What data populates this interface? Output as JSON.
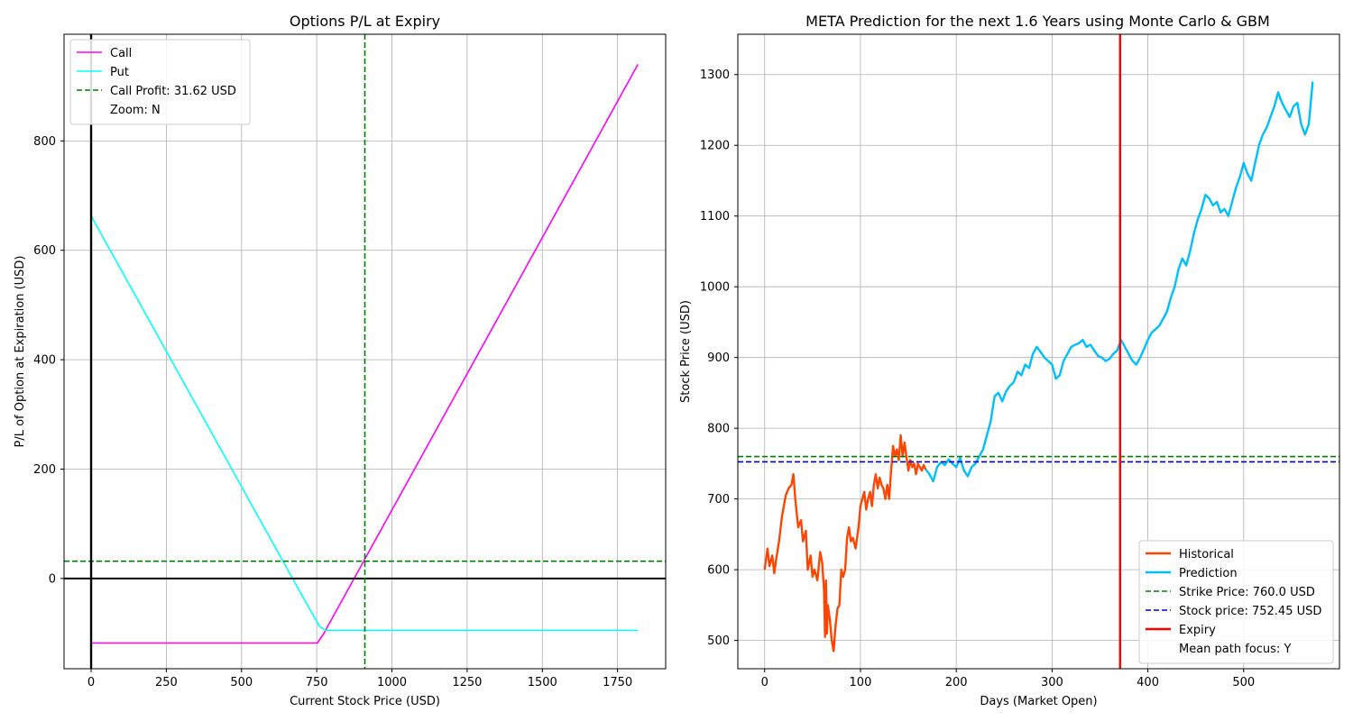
{
  "chart_data": [
    {
      "id": "left",
      "type": "line",
      "title": "Options P/L at Expiry",
      "xlabel": "Current Stock Price (USD)",
      "ylabel": "P/L of Option at Expiration (USD)",
      "xlim": [
        -90,
        1910
      ],
      "ylim": [
        -165,
        995
      ],
      "xticks": [
        0,
        250,
        500,
        750,
        1000,
        1250,
        1500,
        1750
      ],
      "yticks": [
        0,
        200,
        400,
        600,
        800
      ],
      "grid": true,
      "legend_position": "upper-left",
      "series": [
        {
          "name": "Call",
          "color": "#ff00ff",
          "x": [
            0,
            752,
            770,
            1818
          ],
          "y": [
            -118,
            -118,
            -104,
            940
          ]
        },
        {
          "name": "Put",
          "color": "#00ffff",
          "x": [
            0,
            700,
            760,
            780,
            1818
          ],
          "y": [
            663,
            -30,
            -88,
            -95,
            -95
          ]
        }
      ],
      "hlines": [
        {
          "name": "Call Profit: 31.62 USD",
          "y": 31.62,
          "color": "#008000",
          "style": "dashed",
          "legend": true
        },
        {
          "y": 0,
          "color": "#000000",
          "style": "solid",
          "legend": false
        }
      ],
      "vlines": [
        {
          "x": 910,
          "color": "#008000",
          "style": "dashed"
        },
        {
          "x": 0,
          "color": "#000000",
          "style": "solid"
        }
      ],
      "legend_extra": [
        "Zoom: N"
      ]
    },
    {
      "id": "right",
      "type": "line",
      "title": "META Prediction for the next 1.6 Years using Monte Carlo & GBM",
      "xlabel": "Days (Market Open)",
      "ylabel": "Stock Price (USD)",
      "xlim": [
        -28,
        600
      ],
      "ylim": [
        460,
        1357
      ],
      "xticks": [
        0,
        100,
        200,
        300,
        400,
        500
      ],
      "yticks": [
        500,
        600,
        700,
        800,
        900,
        1000,
        1100,
        1200,
        1300
      ],
      "grid": true,
      "legend_position": "lower-right",
      "series": [
        {
          "name": "Historical",
          "color": "#ff4500",
          "x": [
            0,
            3,
            5,
            8,
            10,
            12,
            15,
            18,
            20,
            22,
            25,
            28,
            30,
            32,
            35,
            38,
            40,
            43,
            45,
            48,
            50,
            52,
            55,
            58,
            60,
            62,
            63,
            64,
            65,
            66,
            68,
            70,
            72,
            74,
            76,
            78,
            80,
            82,
            84,
            86,
            88,
            90,
            92,
            95,
            98,
            100,
            102,
            104,
            106,
            108,
            110,
            112,
            114,
            116,
            118,
            120,
            122,
            124,
            126,
            128,
            130,
            132,
            134,
            136,
            138,
            140,
            142,
            144,
            146,
            148,
            150,
            152,
            154,
            156,
            158,
            160,
            162,
            164,
            166,
            168
          ],
          "y": [
            600,
            630,
            605,
            620,
            595,
            615,
            640,
            675,
            690,
            705,
            715,
            720,
            735,
            700,
            660,
            670,
            640,
            655,
            600,
            620,
            590,
            600,
            585,
            625,
            610,
            570,
            505,
            585,
            510,
            550,
            530,
            500,
            485,
            520,
            545,
            550,
            600,
            590,
            600,
            645,
            660,
            640,
            645,
            630,
            660,
            690,
            700,
            710,
            685,
            700,
            710,
            690,
            720,
            735,
            715,
            730,
            720,
            715,
            700,
            720,
            700,
            740,
            775,
            760,
            770,
            755,
            790,
            760,
            780,
            760,
            740,
            755,
            745,
            750,
            735,
            750,
            745,
            740,
            748,
            742
          ]
        },
        {
          "name": "Prediction",
          "color": "#00bfff",
          "x": [
            168,
            172,
            176,
            180,
            184,
            188,
            192,
            196,
            200,
            204,
            208,
            212,
            216,
            220,
            224,
            228,
            232,
            236,
            240,
            244,
            248,
            252,
            256,
            260,
            264,
            268,
            272,
            276,
            280,
            284,
            288,
            292,
            296,
            300,
            304,
            308,
            312,
            316,
            320,
            324,
            328,
            332,
            336,
            340,
            344,
            348,
            352,
            356,
            360,
            364,
            368,
            372,
            376,
            380,
            384,
            388,
            392,
            396,
            400,
            404,
            408,
            412,
            416,
            420,
            424,
            428,
            432,
            436,
            440,
            444,
            448,
            452,
            456,
            460,
            464,
            468,
            472,
            476,
            480,
            484,
            488,
            492,
            496,
            500,
            504,
            508,
            512,
            516,
            520,
            524,
            528,
            532,
            536,
            540,
            544,
            548,
            552,
            556,
            560,
            564,
            568,
            572
          ],
          "y": [
            742,
            735,
            725,
            745,
            752,
            748,
            756,
            750,
            745,
            758,
            740,
            732,
            745,
            750,
            760,
            770,
            790,
            810,
            845,
            850,
            838,
            852,
            860,
            865,
            880,
            875,
            890,
            885,
            905,
            915,
            908,
            900,
            895,
            890,
            870,
            875,
            895,
            905,
            915,
            918,
            920,
            925,
            915,
            918,
            910,
            902,
            900,
            895,
            898,
            905,
            910,
            925,
            915,
            905,
            895,
            890,
            900,
            912,
            925,
            935,
            940,
            945,
            955,
            965,
            985,
            1000,
            1025,
            1040,
            1030,
            1050,
            1075,
            1095,
            1110,
            1130,
            1125,
            1115,
            1120,
            1105,
            1110,
            1100,
            1120,
            1140,
            1155,
            1175,
            1160,
            1150,
            1175,
            1200,
            1215,
            1225,
            1240,
            1255,
            1275,
            1260,
            1250,
            1240,
            1255,
            1260,
            1230,
            1215,
            1230,
            1290
          ]
        }
      ],
      "hlines": [
        {
          "name": "Strike Price: 760.0 USD",
          "y": 760,
          "color": "#008000",
          "style": "dashed",
          "legend": true
        },
        {
          "name": "Stock price: 752.45 USD",
          "y": 752.45,
          "color": "#0000cd",
          "style": "dashed",
          "legend": true
        }
      ],
      "vlines": [
        {
          "name": "Expiry",
          "x": 371,
          "color": "#ff0000",
          "style": "solid",
          "legend": true
        }
      ],
      "legend_extra": [
        "Mean path focus: Y"
      ]
    }
  ]
}
